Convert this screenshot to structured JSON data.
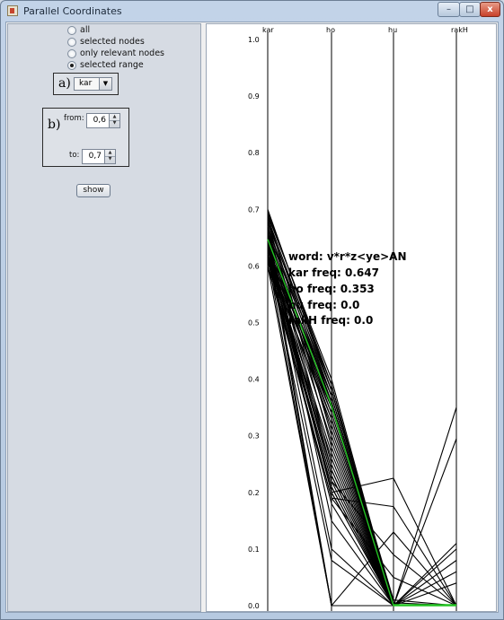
{
  "window": {
    "title": "Parallel Coordinates",
    "buttons": {
      "minimize": "–",
      "maximize": "□",
      "close": "x"
    }
  },
  "left_panel": {
    "radio_options": [
      {
        "label": "all",
        "selected": false
      },
      {
        "label": "selected nodes",
        "selected": false
      },
      {
        "label": "only relevant nodes",
        "selected": false
      },
      {
        "label": "selected range",
        "selected": true
      }
    ],
    "panel_a": {
      "tag": "a)",
      "combo_value": "kar",
      "combo_arrow": "▼"
    },
    "panel_b": {
      "tag": "b)",
      "from_label": "from:",
      "from_value": "0,6",
      "to_label": "to:",
      "to_value": "0,7",
      "spin_up": "▲",
      "spin_down": "▼"
    },
    "show_button": "show"
  },
  "chart_data": {
    "type": "parallel-coordinates",
    "axes": [
      "kar",
      "ho",
      "hu",
      "rakH"
    ],
    "ylim": [
      0.0,
      1.0
    ],
    "y_ticks": [
      "1.0",
      "0.9",
      "0.8",
      "0.7",
      "0.6",
      "0.5",
      "0.4",
      "0.3",
      "0.2",
      "0.1",
      "0.0"
    ],
    "highlight_color": "#22c322",
    "line_color": "#000000",
    "lines": [
      [
        0.7,
        0.38,
        0.0,
        0.0
      ],
      [
        0.695,
        0.39,
        0.0,
        0.0
      ],
      [
        0.69,
        0.4,
        0.0,
        0.0
      ],
      [
        0.685,
        0.38,
        0.005,
        0.0
      ],
      [
        0.68,
        0.37,
        0.0,
        0.0
      ],
      [
        0.675,
        0.39,
        0.0,
        0.0
      ],
      [
        0.67,
        0.36,
        0.0,
        0.0
      ],
      [
        0.665,
        0.38,
        0.01,
        0.0
      ],
      [
        0.66,
        0.37,
        0.0,
        0.0
      ],
      [
        0.655,
        0.35,
        0.0,
        0.0
      ],
      [
        0.65,
        0.36,
        0.0,
        0.0
      ],
      [
        0.645,
        0.34,
        0.0,
        0.0
      ],
      [
        0.64,
        0.37,
        0.0,
        0.0
      ],
      [
        0.635,
        0.35,
        0.0,
        0.0
      ],
      [
        0.63,
        0.33,
        0.0,
        0.0
      ],
      [
        0.625,
        0.36,
        0.0,
        0.0
      ],
      [
        0.62,
        0.34,
        0.0,
        0.0
      ],
      [
        0.615,
        0.32,
        0.0,
        0.0
      ],
      [
        0.61,
        0.35,
        0.0,
        0.0
      ],
      [
        0.605,
        0.33,
        0.0,
        0.0
      ],
      [
        0.69,
        0.3,
        0.0,
        0.0
      ],
      [
        0.68,
        0.28,
        0.0,
        0.0
      ],
      [
        0.66,
        0.31,
        0.0,
        0.0
      ],
      [
        0.64,
        0.29,
        0.0,
        0.0
      ],
      [
        0.62,
        0.27,
        0.0,
        0.0
      ],
      [
        0.61,
        0.26,
        0.0,
        0.0
      ],
      [
        0.67,
        0.25,
        0.0,
        0.0
      ],
      [
        0.63,
        0.24,
        0.0,
        0.0
      ],
      [
        0.62,
        0.21,
        0.0,
        0.0
      ],
      [
        0.64,
        0.2,
        0.0,
        0.0
      ],
      [
        0.61,
        0.18,
        0.0,
        0.0
      ],
      [
        0.66,
        0.15,
        0.0,
        0.0
      ],
      [
        0.65,
        0.1,
        0.0,
        0.0
      ],
      [
        0.62,
        0.08,
        0.0,
        0.0
      ],
      [
        0.63,
        0.2,
        0.225,
        0.0
      ],
      [
        0.61,
        0.19,
        0.175,
        0.0
      ],
      [
        0.65,
        0.2,
        0.0,
        0.35
      ],
      [
        0.64,
        0.23,
        0.0,
        0.295
      ],
      [
        0.62,
        0.22,
        0.0,
        0.11
      ],
      [
        0.66,
        0.24,
        0.0,
        0.08
      ],
      [
        0.63,
        0.23,
        0.0,
        0.06
      ],
      [
        0.61,
        0.21,
        0.0,
        0.04
      ],
      [
        0.6,
        0.0,
        0.0,
        0.0
      ],
      [
        0.615,
        0.0,
        0.13,
        0.0
      ],
      [
        0.64,
        0.0,
        0.0,
        0.0
      ],
      [
        0.655,
        0.0,
        0.0,
        0.1
      ],
      [
        0.62,
        0.22,
        0.09,
        0.0
      ],
      [
        0.6,
        0.19,
        0.05,
        0.0
      ]
    ],
    "highlighted_line": [
      0.647,
      0.353,
      0.0,
      0.0
    ],
    "tooltip": [
      "word: v*r*z<ye>AN",
      "kar freq: 0.647",
      "ho freq: 0.353",
      "hu freq: 0.0",
      "rakH freq: 0.0"
    ]
  }
}
